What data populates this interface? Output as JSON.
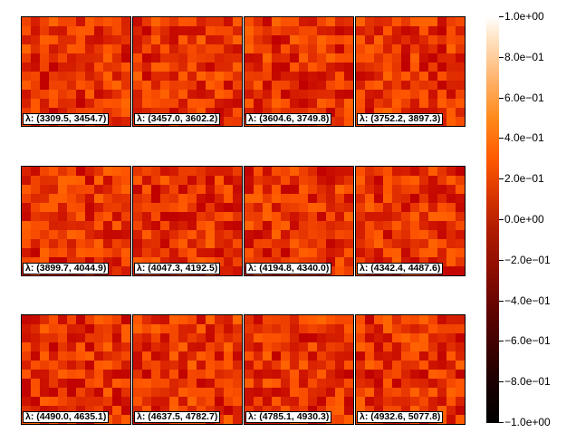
{
  "chart_data": {
    "type": "heatmap",
    "title": "",
    "grid_size": 12,
    "layout": {
      "rows": 3,
      "cols": 4
    },
    "panels": [
      {
        "label": "λ: (3309.5, 3454.7)"
      },
      {
        "label": "λ: (3457.0, 3602.2)"
      },
      {
        "label": "λ: (3604.6, 3749.8)"
      },
      {
        "label": "λ: (3752.2, 3897.3)"
      },
      {
        "label": "λ: (3899.7, 4044.9)"
      },
      {
        "label": "λ: (4047.3, 4192.5)"
      },
      {
        "label": "λ: (4194.8, 4340.0)"
      },
      {
        "label": "λ: (4342.4, 4487.6)"
      },
      {
        "label": "λ: (4490.0, 4635.1)"
      },
      {
        "label": "λ: (4637.5, 4782.7)"
      },
      {
        "label": "λ: (4785.1, 4930.3)"
      },
      {
        "label": "λ: (4932.6, 5077.8)"
      }
    ],
    "value_range": [
      -1.0,
      1.0
    ],
    "typical_value_range": [
      0.0,
      0.4
    ],
    "colorbar": {
      "colormap": "gist_heat",
      "ticks": [
        {
          "value": 1.0,
          "label": "1.0e+00"
        },
        {
          "value": 0.8,
          "label": "8.0e−01"
        },
        {
          "value": 0.6,
          "label": "6.0e−01"
        },
        {
          "value": 0.4,
          "label": "4.0e−01"
        },
        {
          "value": 0.2,
          "label": "2.0e−01"
        },
        {
          "value": 0.0,
          "label": "0.0e+00"
        },
        {
          "value": -0.2,
          "label": "−2.0e−01"
        },
        {
          "value": -0.4,
          "label": "−4.0e−01"
        },
        {
          "value": -0.6,
          "label": "−6.0e−01"
        },
        {
          "value": -0.8,
          "label": "−8.0e−01"
        },
        {
          "value": -1.0,
          "label": "−1.0e+00"
        }
      ]
    }
  }
}
